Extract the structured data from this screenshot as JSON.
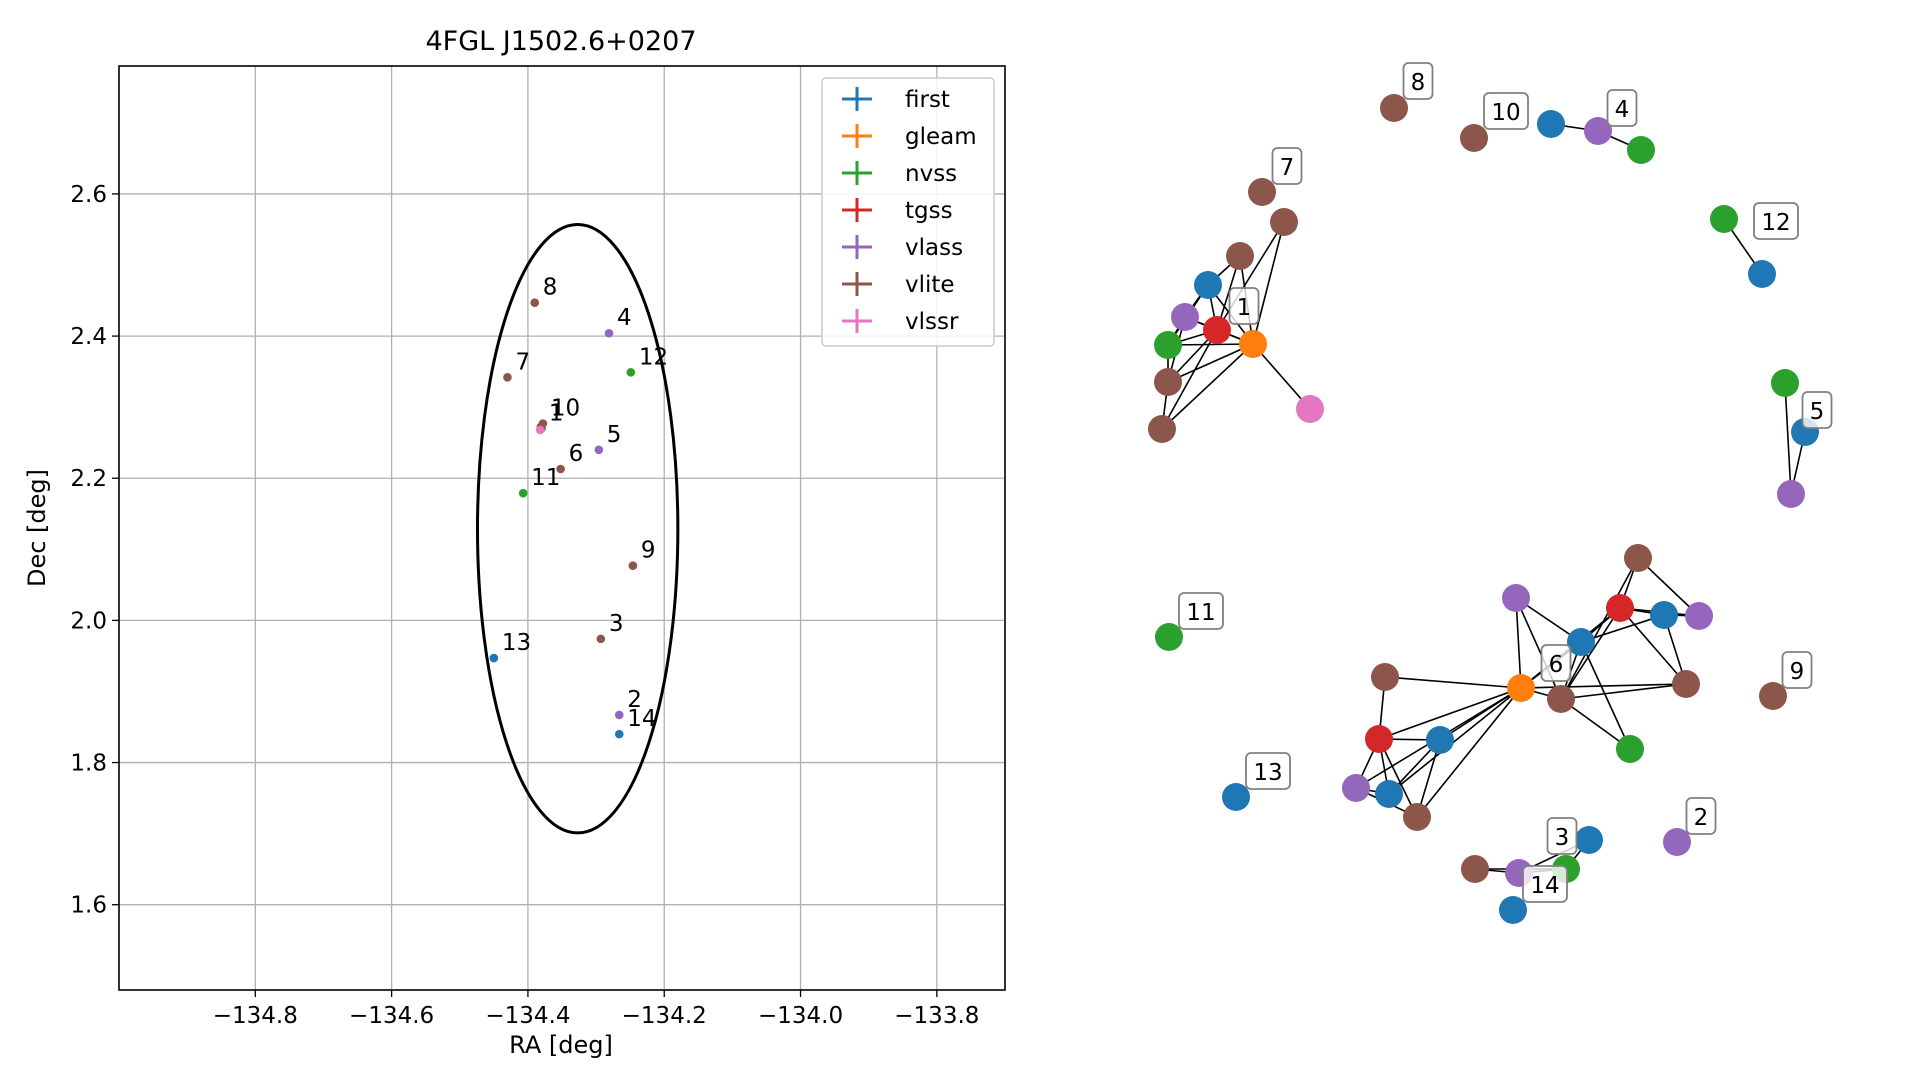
{
  "chart_data": [
    {
      "type": "scatter",
      "title": "4FGL J1502.6+0207",
      "xlabel": "RA [deg]",
      "ylabel": "Dec [deg]",
      "xlim": [
        -135.0,
        -133.7
      ],
      "ylim": [
        1.48,
        2.78
      ],
      "xticks": [
        -134.8,
        -134.6,
        -134.4,
        -134.2,
        -134.0,
        -133.8
      ],
      "xtick_labels": [
        "−134.8",
        "−134.6",
        "−134.4",
        "−134.2",
        "−134.0",
        "−133.8"
      ],
      "yticks": [
        1.6,
        1.8,
        2.0,
        2.2,
        2.4,
        2.6
      ],
      "ytick_labels": [
        "1.6",
        "1.8",
        "2.0",
        "2.2",
        "2.4",
        "2.6"
      ],
      "grid": true,
      "legend": "top-right",
      "ellipse": {
        "center_ra": -134.327,
        "center_dec": 2.129,
        "semi_ra": 0.147,
        "semi_dec": 0.428
      },
      "series": [
        {
          "name": "first",
          "color": "#1f77b4",
          "points": [
            {
              "ra": -134.45,
              "dec": 1.947
            },
            {
              "ra": -134.266,
              "dec": 1.84
            },
            {
              "ra": -134.38,
              "dec": 2.27
            }
          ]
        },
        {
          "name": "gleam",
          "color": "#ff7f0e",
          "points": [
            {
              "ra": -134.381,
              "dec": 2.27
            }
          ]
        },
        {
          "name": "nvss",
          "color": "#2ca02c",
          "points": [
            {
              "ra": -134.407,
              "dec": 2.179
            },
            {
              "ra": -134.249,
              "dec": 2.349
            }
          ]
        },
        {
          "name": "tgss",
          "color": "#d62728",
          "points": [
            {
              "ra": -134.381,
              "dec": 2.272
            }
          ]
        },
        {
          "name": "vlass",
          "color": "#9467bd",
          "points": [
            {
              "ra": -134.281,
              "dec": 2.404
            },
            {
              "ra": -134.296,
              "dec": 2.24
            },
            {
              "ra": -134.266,
              "dec": 1.867
            }
          ]
        },
        {
          "name": "vlite",
          "color": "#8c564b",
          "points": [
            {
              "ra": -134.39,
              "dec": 2.447
            },
            {
              "ra": -134.43,
              "dec": 2.342
            },
            {
              "ra": -134.378,
              "dec": 2.277
            },
            {
              "ra": -134.352,
              "dec": 2.213
            },
            {
              "ra": -134.246,
              "dec": 2.077
            },
            {
              "ra": -134.293,
              "dec": 1.974
            }
          ]
        },
        {
          "name": "vlssr",
          "color": "#e377c2",
          "points": [
            {
              "ra": -134.382,
              "dec": 2.268
            }
          ]
        }
      ],
      "annotations": [
        {
          "text": "8",
          "ra": -134.39,
          "dec": 2.447
        },
        {
          "text": "4",
          "ra": -134.281,
          "dec": 2.404
        },
        {
          "text": "7",
          "ra": -134.43,
          "dec": 2.342
        },
        {
          "text": "12",
          "ra": -134.249,
          "dec": 2.349
        },
        {
          "text": "1",
          "ra": -134.381,
          "dec": 2.27
        },
        {
          "text": "10",
          "ra": -134.378,
          "dec": 2.277
        },
        {
          "text": "5",
          "ra": -134.296,
          "dec": 2.24
        },
        {
          "text": "6",
          "ra": -134.352,
          "dec": 2.213
        },
        {
          "text": "11",
          "ra": -134.407,
          "dec": 2.179
        },
        {
          "text": "9",
          "ra": -134.246,
          "dec": 2.077
        },
        {
          "text": "3",
          "ra": -134.293,
          "dec": 1.974
        },
        {
          "text": "13",
          "ra": -134.45,
          "dec": 1.947
        },
        {
          "text": "2",
          "ra": -134.266,
          "dec": 1.867
        },
        {
          "text": "14",
          "ra": -134.266,
          "dec": 1.84
        }
      ]
    },
    {
      "type": "network",
      "node_colors": {
        "first": "#1f77b4",
        "gleam": "#ff7f0e",
        "nvss": "#2ca02c",
        "tgss": "#d62728",
        "vlass": "#9467bd",
        "vlite": "#8c564b",
        "vlssr": "#e377c2"
      },
      "components": [
        {
          "label": "1",
          "nodes": [
            "tgss",
            "gleam",
            "first",
            "vlass",
            "nvss",
            "vlite",
            "vlite",
            "vlite",
            "vlite",
            "vlssr"
          ]
        },
        {
          "label": "6",
          "nodes": [
            "gleam",
            "tgss",
            "tgss",
            "first",
            "first",
            "first",
            "first",
            "vlass",
            "vlass",
            "vlass",
            "vlite",
            "vlite",
            "vlite",
            "vlite",
            "vlite",
            "nvss"
          ]
        },
        {
          "label": "4",
          "nodes": [
            "first",
            "vlass",
            "nvss"
          ]
        },
        {
          "label": "5",
          "nodes": [
            "nvss",
            "first",
            "vlass"
          ]
        },
        {
          "label": "3",
          "nodes": [
            "vlite",
            "vlass",
            "nvss",
            "first"
          ]
        },
        {
          "label": "12",
          "nodes": [
            "nvss",
            "first"
          ]
        },
        {
          "label": "7",
          "nodes": [
            "vlite"
          ]
        },
        {
          "label": "8",
          "nodes": [
            "vlite"
          ]
        },
        {
          "label": "10",
          "nodes": [
            "vlite"
          ]
        },
        {
          "label": "11",
          "nodes": [
            "nvss"
          ]
        },
        {
          "label": "9",
          "nodes": [
            "vlite"
          ]
        },
        {
          "label": "13",
          "nodes": [
            "first"
          ]
        },
        {
          "label": "2",
          "nodes": [
            "vlass"
          ]
        },
        {
          "label": "14",
          "nodes": [
            "first"
          ]
        }
      ]
    }
  ]
}
